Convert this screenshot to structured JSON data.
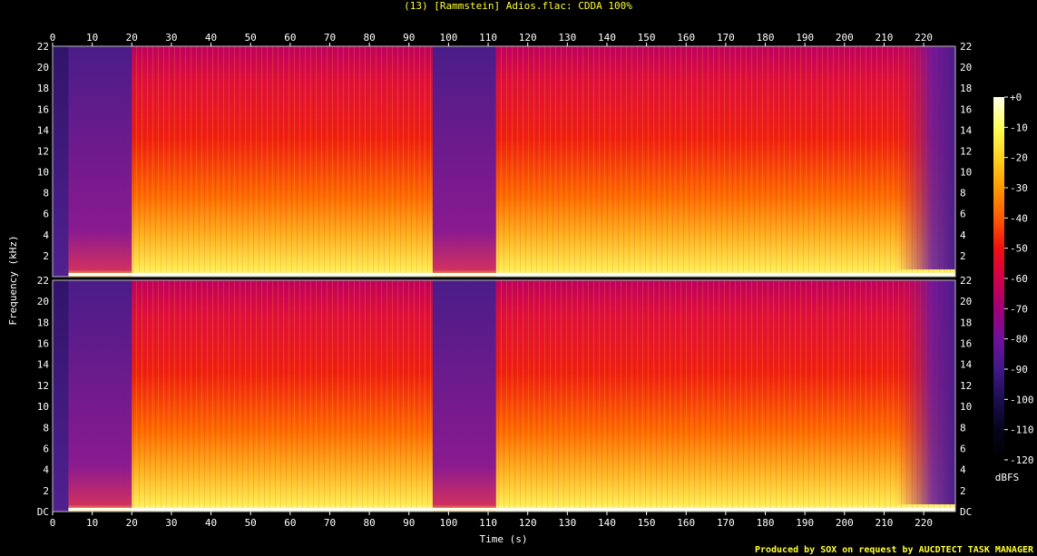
{
  "title": "(13) [Rammstein] Adios.flac: CDDA 100%",
  "credit": "Produced by SOX on request by AUCDTECT TASK MANAGER",
  "chart_data": {
    "type": "heatmap",
    "title": "(13) [Rammstein] Adios.flac: CDDA 100%",
    "xlabel": "Time (s)",
    "ylabel": "Frequency (kHz)",
    "xlim": [
      0,
      228
    ],
    "ylim": [
      0,
      22
    ],
    "x_ticks": [
      "0",
      "10",
      "20",
      "30",
      "40",
      "50",
      "60",
      "70",
      "80",
      "90",
      "100",
      "110",
      "120",
      "130",
      "140",
      "150",
      "160",
      "170",
      "180",
      "190",
      "200",
      "210",
      "220"
    ],
    "y_ticks": [
      "DC",
      "2",
      "4",
      "6",
      "8",
      "10",
      "12",
      "14",
      "16",
      "18",
      "20",
      "22"
    ],
    "y_ticks_top": [
      "2",
      "4",
      "6",
      "8",
      "10",
      "12",
      "14",
      "16",
      "18",
      "20",
      "22"
    ],
    "channels": 2,
    "colorbar": {
      "label": "dBFS",
      "range": [
        -120,
        0
      ],
      "ticks": [
        "+0",
        "-10",
        "-20",
        "-30",
        "-40",
        "-50",
        "-60",
        "-70",
        "-80",
        "-90",
        "-100",
        "-110",
        "-120"
      ],
      "colors": [
        "#ffffe6",
        "#ffff5a",
        "#ffd21e",
        "#ff9a00",
        "#ff5a00",
        "#f01010",
        "#d0004a",
        "#a00078",
        "#70109a",
        "#401888",
        "#1c0e52",
        "#06041c",
        "#000000"
      ]
    },
    "segments": [
      {
        "start": 0,
        "end": 4,
        "level": "quiet"
      },
      {
        "start": 4,
        "end": 18,
        "level": "low"
      },
      {
        "start": 18,
        "end": 20,
        "level": "transition"
      },
      {
        "start": 20,
        "end": 96,
        "level": "loud"
      },
      {
        "start": 96,
        "end": 112,
        "level": "low"
      },
      {
        "start": 112,
        "end": 228,
        "level": "loud"
      }
    ]
  }
}
